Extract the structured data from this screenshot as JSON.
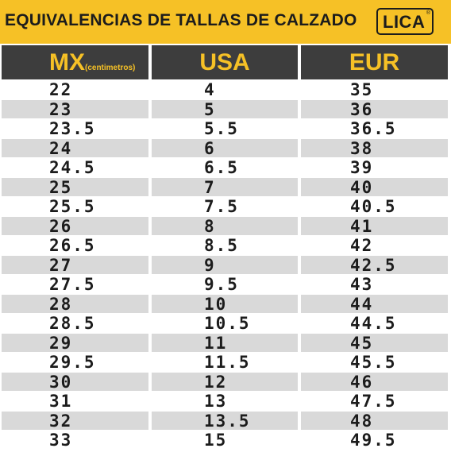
{
  "banner": {
    "title": "EQUIVALENCIAS DE TALLAS DE CALZADO",
    "logo_text": "LICA",
    "logo_reg": "®",
    "background": "#f6c126"
  },
  "table": {
    "headers": {
      "mx": "MX",
      "mx_sub": "(centimetros)",
      "usa": "USA",
      "eur": "EUR"
    },
    "header_bg": "#3d3d3d",
    "header_fg": "#f6c126",
    "row_colors": [
      "#ffffff",
      "#d9d9d9"
    ],
    "rows": [
      {
        "mx": "22",
        "usa": "4",
        "eur": "35"
      },
      {
        "mx": "23",
        "usa": "5",
        "eur": "36"
      },
      {
        "mx": "23.5",
        "usa": "5.5",
        "eur": "36.5"
      },
      {
        "mx": "24",
        "usa": "6",
        "eur": "38"
      },
      {
        "mx": "24.5",
        "usa": "6.5",
        "eur": "39"
      },
      {
        "mx": "25",
        "usa": "7",
        "eur": "40"
      },
      {
        "mx": "25.5",
        "usa": "7.5",
        "eur": "40.5"
      },
      {
        "mx": "26",
        "usa": "8",
        "eur": "41"
      },
      {
        "mx": "26.5",
        "usa": "8.5",
        "eur": "42"
      },
      {
        "mx": "27",
        "usa": "9",
        "eur": "42.5"
      },
      {
        "mx": "27.5",
        "usa": "9.5",
        "eur": "43"
      },
      {
        "mx": "28",
        "usa": "10",
        "eur": "44"
      },
      {
        "mx": "28.5",
        "usa": "10.5",
        "eur": "44.5"
      },
      {
        "mx": "29",
        "usa": "11",
        "eur": "45"
      },
      {
        "mx": "29.5",
        "usa": "11.5",
        "eur": "45.5"
      },
      {
        "mx": "30",
        "usa": "12",
        "eur": "46"
      },
      {
        "mx": "31",
        "usa": "13",
        "eur": "47.5"
      },
      {
        "mx": "32",
        "usa": "13.5",
        "eur": "48"
      },
      {
        "mx": "33",
        "usa": "15",
        "eur": "49.5"
      }
    ]
  }
}
